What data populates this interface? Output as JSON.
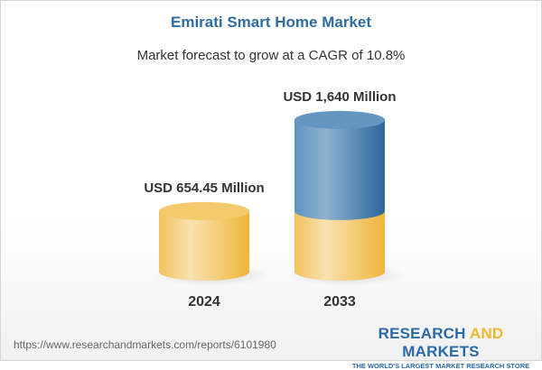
{
  "title": "Emirati Smart Home Market",
  "subtitle": "Market forecast to grow at a CAGR of 10.8%",
  "chart_data": {
    "type": "bar",
    "style": "3d-cylinder",
    "categories": [
      "2024",
      "2033"
    ],
    "values": [
      654.45,
      1640
    ],
    "unit": "USD Million",
    "data_labels": [
      "USD 654.45 Million",
      "USD 1,640 Million"
    ],
    "colors": {
      "base": "#f2c25a",
      "growth": "#3f7db0"
    },
    "grid": false
  },
  "footer": {
    "url": "https://www.researchandmarkets.com/reports/6101980",
    "logo_part1": "RESEARCH ",
    "logo_and": "AND",
    "logo_part2": " MARKETS",
    "tagline": "THE WORLD'S LARGEST MARKET RESEARCH STORE"
  }
}
